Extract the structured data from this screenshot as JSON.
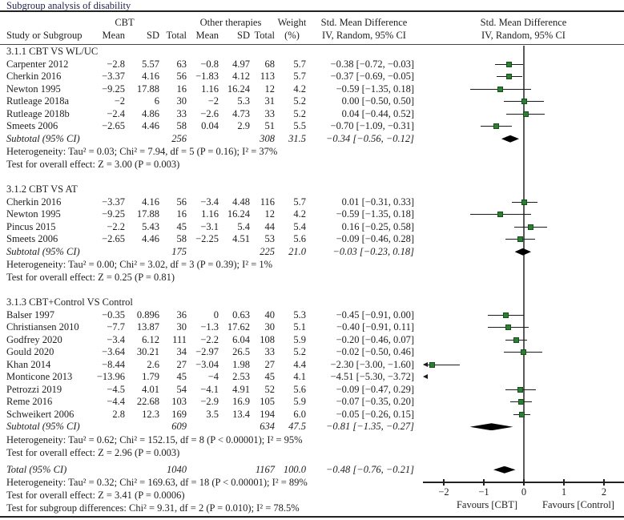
{
  "title": "Subgroup analysis of disability",
  "header": {
    "study": "Study or Subgroup",
    "group1": "CBT",
    "group2": "Other therapies",
    "mean": "Mean",
    "sd": "SD",
    "total": "Total",
    "weight_line1": "Weight",
    "weight_line2": "(%)",
    "smd_line1": "Std. Mean Difference",
    "smd_line2": "IV, Random, 95% CI"
  },
  "colors": {
    "marker_green_fill": "#2e7d32",
    "marker_green_border": "#14501a",
    "diamond_black": "#000000",
    "line_black": "#1c1c1c",
    "title_navy": "#23234f"
  },
  "chart_data": {
    "type": "forest",
    "effect_measure": "Std. Mean Difference (IV, Random, 95% CI)",
    "axis": {
      "min": -2,
      "max": 2,
      "ticks": [
        -2,
        -1,
        0,
        1,
        2
      ],
      "tick_labels": [
        "−2",
        "−1",
        "0",
        "1",
        "2"
      ],
      "favours_left": "Favours [CBT]",
      "favours_right": "Favours [Control]"
    },
    "sections": [
      {
        "heading": "3.1.1 CBT VS WL/UC",
        "studies": [
          {
            "label": "Carpenter 2012",
            "mean1": "−2.8",
            "sd1": "5.57",
            "n1": "63",
            "mean2": "−0.8",
            "sd2": "4.97",
            "n2": "68",
            "weight": "5.7",
            "ci_text": "−0.38 [−0.72, −0.03]",
            "est": -0.38,
            "lo": -0.72,
            "hi": -0.03
          },
          {
            "label": "Cherkin 2016",
            "mean1": "−3.37",
            "sd1": "4.16",
            "n1": "56",
            "mean2": "−1.83",
            "sd2": "4.12",
            "n2": "113",
            "weight": "5.7",
            "ci_text": "−0.37 [−0.69, −0.05]",
            "est": -0.37,
            "lo": -0.69,
            "hi": -0.05
          },
          {
            "label": "Newton 1995",
            "mean1": "−9.25",
            "sd1": "17.88",
            "n1": "16",
            "mean2": "1.16",
            "sd2": "16.24",
            "n2": "12",
            "weight": "4.2",
            "ci_text": "−0.59 [−1.35, 0.18]",
            "est": -0.59,
            "lo": -1.35,
            "hi": 0.18
          },
          {
            "label": "Rutleage 2018a",
            "mean1": "−2",
            "sd1": "6",
            "n1": "30",
            "mean2": "−2",
            "sd2": "5.3",
            "n2": "31",
            "weight": "5.2",
            "ci_text": "0.00 [−0.50, 0.50]",
            "est": 0.0,
            "lo": -0.5,
            "hi": 0.5
          },
          {
            "label": "Rutleage 2018b",
            "mean1": "−2.4",
            "sd1": "4.86",
            "n1": "33",
            "mean2": "−2.6",
            "sd2": "4.73",
            "n2": "33",
            "weight": "5.2",
            "ci_text": "0.04 [−0.44, 0.52]",
            "est": 0.04,
            "lo": -0.44,
            "hi": 0.52
          },
          {
            "label": "Smeets 2006",
            "mean1": "−2.65",
            "sd1": "4.46",
            "n1": "58",
            "mean2": "0.04",
            "sd2": "2.9",
            "n2": "51",
            "weight": "5.5",
            "ci_text": "−0.70 [−1.09, −0.31]",
            "est": -0.7,
            "lo": -1.09,
            "hi": -0.31
          }
        ],
        "subtotal": {
          "label": "Subtotal (95% CI)",
          "n1": "256",
          "n2": "308",
          "weight": "31.5",
          "ci_text": "−0.34 [−0.56, −0.12]",
          "est": -0.34,
          "lo": -0.56,
          "hi": -0.12
        },
        "heterogeneity": "Heterogeneity: Tau² = 0.03; Chi² = 7.94, df = 5 (P = 0.16); I² = 37%",
        "overall_effect": "Test for overall effect: Z = 3.00 (P = 0.003)"
      },
      {
        "heading": "3.1.2 CBT VS AT",
        "studies": [
          {
            "label": "Cherkin 2016",
            "mean1": "−3.37",
            "sd1": "4.16",
            "n1": "56",
            "mean2": "−3.4",
            "sd2": "4.48",
            "n2": "116",
            "weight": "5.7",
            "ci_text": "0.01 [−0.31, 0.33]",
            "est": 0.01,
            "lo": -0.31,
            "hi": 0.33
          },
          {
            "label": "Newton 1995",
            "mean1": "−9.25",
            "sd1": "17.88",
            "n1": "16",
            "mean2": "1.16",
            "sd2": "16.24",
            "n2": "12",
            "weight": "4.2",
            "ci_text": "−0.59 [−1.35, 0.18]",
            "est": -0.59,
            "lo": -1.35,
            "hi": 0.18
          },
          {
            "label": "Pincus 2015",
            "mean1": "−2.2",
            "sd1": "5.43",
            "n1": "45",
            "mean2": "−3.1",
            "sd2": "5.4",
            "n2": "44",
            "weight": "5.4",
            "ci_text": "0.16 [−0.25, 0.58]",
            "est": 0.16,
            "lo": -0.25,
            "hi": 0.58
          },
          {
            "label": "Smeets 2006",
            "mean1": "−2.65",
            "sd1": "4.46",
            "n1": "58",
            "mean2": "−2.25",
            "sd2": "4.51",
            "n2": "53",
            "weight": "5.6",
            "ci_text": "−0.09 [−0.46, 0.28]",
            "est": -0.09,
            "lo": -0.46,
            "hi": 0.28
          }
        ],
        "subtotal": {
          "label": "Subtotal (95% CI)",
          "n1": "175",
          "n2": "225",
          "weight": "21.0",
          "ci_text": "−0.03 [−0.23, 0.18]",
          "est": -0.03,
          "lo": -0.23,
          "hi": 0.18
        },
        "heterogeneity": "Heterogeneity: Tau² = 0.00; Chi² = 3.02, df = 3 (P = 0.39); I² = 1%",
        "overall_effect": "Test for overall effect: Z = 0.25 (P = 0.81)"
      },
      {
        "heading": "3.1.3 CBT+Control VS Control",
        "studies": [
          {
            "label": "Balser 1997",
            "mean1": "−0.35",
            "sd1": "0.896",
            "n1": "36",
            "mean2": "0",
            "sd2": "0.63",
            "n2": "40",
            "weight": "5.3",
            "ci_text": "−0.45 [−0.91, 0.00]",
            "est": -0.45,
            "lo": -0.91,
            "hi": 0.0
          },
          {
            "label": "Christiansen 2010",
            "mean1": "−7.7",
            "sd1": "13.87",
            "n1": "30",
            "mean2": "−1.3",
            "sd2": "17.62",
            "n2": "30",
            "weight": "5.1",
            "ci_text": "−0.40 [−0.91, 0.11]",
            "est": -0.4,
            "lo": -0.91,
            "hi": 0.11
          },
          {
            "label": "Godfrey 2020",
            "mean1": "−3.4",
            "sd1": "6.12",
            "n1": "111",
            "mean2": "−2.2",
            "sd2": "6.04",
            "n2": "108",
            "weight": "5.9",
            "ci_text": "−0.20 [−0.46, 0.07]",
            "est": -0.2,
            "lo": -0.46,
            "hi": 0.07
          },
          {
            "label": "Gould 2020",
            "mean1": "−3.64",
            "sd1": "30.21",
            "n1": "34",
            "mean2": "−2.97",
            "sd2": "26.5",
            "n2": "33",
            "weight": "5.2",
            "ci_text": "−0.02 [−0.50, 0.46]",
            "est": -0.02,
            "lo": -0.5,
            "hi": 0.46
          },
          {
            "label": "Khan 2014",
            "mean1": "−8.44",
            "sd1": "2.6",
            "n1": "27",
            "mean2": "−3.04",
            "sd2": "1.98",
            "n2": "27",
            "weight": "4.4",
            "ci_text": "−2.30 [−3.00, −1.60]",
            "est": -2.3,
            "lo": -3.0,
            "hi": -1.6
          },
          {
            "label": "Monticone 2013",
            "mean1": "−13.96",
            "sd1": "1.79",
            "n1": "45",
            "mean2": "−4",
            "sd2": "2.53",
            "n2": "45",
            "weight": "4.1",
            "ci_text": "−4.51 [−5.30, −3.72]",
            "est": -4.51,
            "lo": -5.3,
            "hi": -3.72
          },
          {
            "label": "Petrozzi 2019",
            "mean1": "−4.5",
            "sd1": "4.01",
            "n1": "54",
            "mean2": "−4.1",
            "sd2": "4.91",
            "n2": "52",
            "weight": "5.6",
            "ci_text": "−0.09 [−0.47, 0.29]",
            "est": -0.09,
            "lo": -0.47,
            "hi": 0.29
          },
          {
            "label": "Reme 2016",
            "mean1": "−4.4",
            "sd1": "22.68",
            "n1": "103",
            "mean2": "−2.9",
            "sd2": "16.9",
            "n2": "105",
            "weight": "5.9",
            "ci_text": "−0.07 [−0.35, 0.20]",
            "est": -0.07,
            "lo": -0.35,
            "hi": 0.2
          },
          {
            "label": "Schweikert 2006",
            "mean1": "2.8",
            "sd1": "12.3",
            "n1": "169",
            "mean2": "3.5",
            "sd2": "13.4",
            "n2": "194",
            "weight": "6.0",
            "ci_text": "−0.05 [−0.26, 0.15]",
            "est": -0.05,
            "lo": -0.26,
            "hi": 0.15
          }
        ],
        "subtotal": {
          "label": "Subtotal (95% CI)",
          "n1": "609",
          "n2": "634",
          "weight": "47.5",
          "ci_text": "−0.81 [−1.35, −0.27]",
          "est": -0.81,
          "lo": -1.35,
          "hi": -0.27
        },
        "heterogeneity": "Heterogeneity: Tau² = 0.62; Chi² = 152.15, df = 8 (P < 0.00001); I² = 95%",
        "overall_effect": "Test for overall effect: Z = 2.96 (P = 0.003)"
      }
    ],
    "total": {
      "label": "Total (95% CI)",
      "n1": "1040",
      "n2": "1167",
      "weight": "100.0",
      "ci_text": "−0.48 [−0.76, −0.21]",
      "est": -0.48,
      "lo": -0.76,
      "hi": -0.21,
      "heterogeneity": "Heterogeneity: Tau² = 0.32; Chi² = 169.63, df = 18 (P < 0.00001); I² = 89%",
      "overall_effect": "Test for overall effect: Z = 3.41 (P = 0.0006)",
      "subgroup_differences": "Test for subgroup differences: Chi² = 9.31, df = 2 (P = 0.010); I² = 78.5%"
    }
  }
}
